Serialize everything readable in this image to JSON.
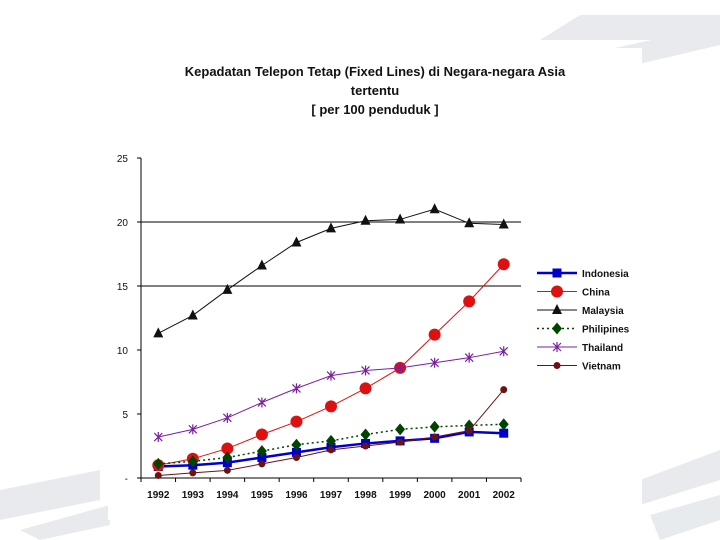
{
  "chart_data": {
    "type": "line",
    "title_lines": [
      "Kepadatan Telepon Tetap (Fixed Lines) di Negara-negara  Asia",
      "tertentu",
      "[ per 100 penduduk ]"
    ],
    "categories": [
      "1992",
      "1993",
      "1994",
      "1995",
      "1996",
      "1997",
      "1998",
      "1999",
      "2000",
      "2001",
      "2002"
    ],
    "ylim": [
      0,
      25
    ],
    "yticks": [
      {
        "value": 0,
        "label": "-"
      },
      {
        "value": 5,
        "label": "5"
      },
      {
        "value": 10,
        "label": "10"
      },
      {
        "value": 15,
        "label": "15"
      },
      {
        "value": 20,
        "label": "20"
      },
      {
        "value": 25,
        "label": "25"
      }
    ],
    "gridlines": [
      15,
      20
    ],
    "legend_position": "right",
    "series": [
      {
        "name": "Indonesia",
        "color": "#0000cc",
        "marker": "square",
        "dash": "solid",
        "width": 2.5,
        "values": [
          0.9,
          1.0,
          1.2,
          1.6,
          2.0,
          2.4,
          2.7,
          2.9,
          3.1,
          3.6,
          3.5
        ]
      },
      {
        "name": "China",
        "color": "#dd1111",
        "marker": "circle",
        "dash": "solid",
        "width": 1,
        "values": [
          1.0,
          1.5,
          2.3,
          3.4,
          4.4,
          5.6,
          7.0,
          8.6,
          11.2,
          13.8,
          16.7
        ]
      },
      {
        "name": "Malaysia",
        "color": "#111111",
        "marker": "triangle",
        "dash": "solid",
        "width": 1,
        "values": [
          11.3,
          12.7,
          14.7,
          16.6,
          18.4,
          19.5,
          20.1,
          20.2,
          21.0,
          19.9,
          19.8
        ]
      },
      {
        "name": "Philipines",
        "color": "#004400",
        "marker": "diamond",
        "dash": "dotted",
        "width": 1.5,
        "values": [
          1.1,
          1.3,
          1.6,
          2.1,
          2.6,
          2.9,
          3.4,
          3.8,
          4.0,
          4.1,
          4.2
        ]
      },
      {
        "name": "Thailand",
        "color": "#7a1fa0",
        "marker": "star",
        "dash": "solid",
        "width": 1,
        "values": [
          3.2,
          3.8,
          4.7,
          5.9,
          7.0,
          8.0,
          8.4,
          8.6,
          9.0,
          9.4,
          9.9
        ]
      },
      {
        "name": "Vietnam",
        "color": "#6b1212",
        "marker": "smallcircle",
        "dash": "solid",
        "width": 1,
        "values": [
          0.2,
          0.4,
          0.6,
          1.1,
          1.6,
          2.2,
          2.5,
          2.8,
          3.2,
          3.7,
          6.9
        ]
      }
    ]
  }
}
